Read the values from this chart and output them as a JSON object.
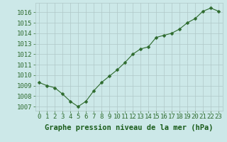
{
  "x": [
    0,
    1,
    2,
    3,
    4,
    5,
    6,
    7,
    8,
    9,
    10,
    11,
    12,
    13,
    14,
    15,
    16,
    17,
    18,
    19,
    20,
    21,
    22,
    23
  ],
  "y": [
    1009.3,
    1009.0,
    1008.8,
    1008.2,
    1007.5,
    1007.0,
    1007.5,
    1008.5,
    1009.3,
    1009.9,
    1010.5,
    1011.2,
    1012.0,
    1012.5,
    1012.7,
    1013.6,
    1013.8,
    1014.0,
    1014.4,
    1015.0,
    1015.4,
    1016.1,
    1016.4,
    1016.1
  ],
  "line_color": "#2d6a2d",
  "marker_color": "#2d6a2d",
  "bg_color": "#cce8e8",
  "grid_color": "#b0c8c8",
  "xlabel": "Graphe pression niveau de la mer (hPa)",
  "xlabel_color": "#1a5c1a",
  "tick_label_color": "#2d6a2d",
  "ylim_min": 1006.6,
  "ylim_max": 1016.9,
  "yticks": [
    1007,
    1008,
    1009,
    1010,
    1011,
    1012,
    1013,
    1014,
    1015,
    1016
  ],
  "xticks": [
    0,
    1,
    2,
    3,
    4,
    5,
    6,
    7,
    8,
    9,
    10,
    11,
    12,
    13,
    14,
    15,
    16,
    17,
    18,
    19,
    20,
    21,
    22,
    23
  ],
  "font_size": 6.5,
  "xlabel_font_size": 7.5
}
